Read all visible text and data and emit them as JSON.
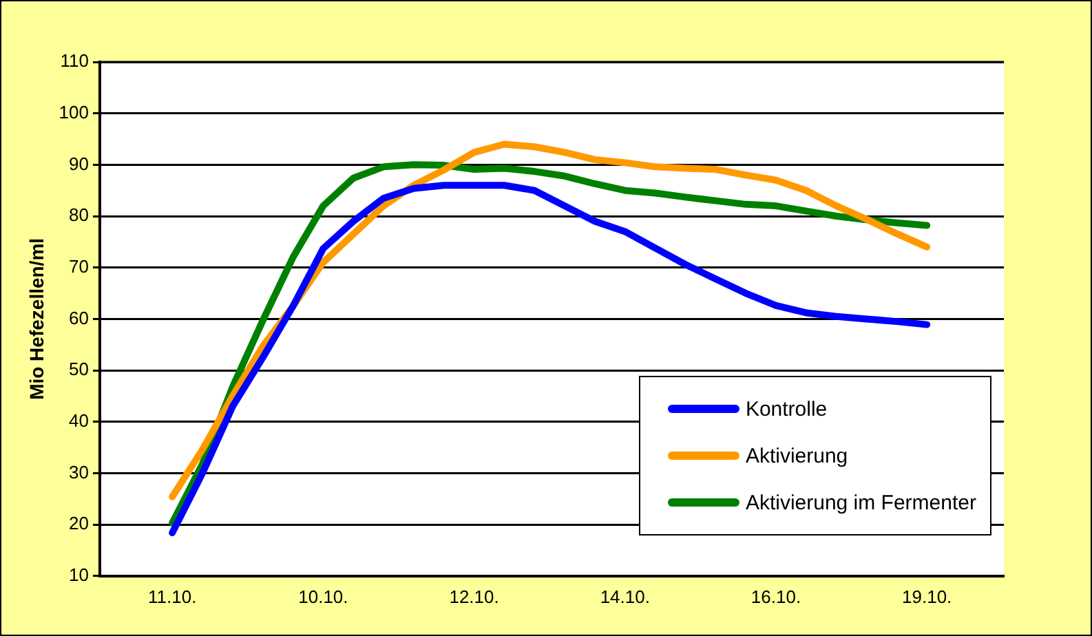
{
  "chart_data": {
    "type": "line",
    "ylabel": "Mio Hefezellen/ml",
    "categories": [
      "11.10.",
      null,
      null,
      null,
      null,
      "10.10.",
      null,
      null,
      null,
      null,
      "12.10.",
      null,
      null,
      null,
      null,
      "14.10.",
      null,
      null,
      null,
      null,
      "16.10.",
      null,
      null,
      null,
      null,
      "19.10."
    ],
    "series": [
      {
        "name": "Kontrolle",
        "color": "#0000ff",
        "values": [
          18.4,
          30,
          43,
          52.5,
          62.5,
          73.7,
          79,
          83.5,
          85.4,
          86,
          86,
          86,
          85,
          82,
          79,
          77,
          73.8,
          70.6,
          67.8,
          65,
          62.6,
          61.2,
          60.5,
          60,
          59.5,
          58.9
        ]
      },
      {
        "name": "Aktivierung",
        "color": "#ff9900",
        "values": [
          25.4,
          34.6,
          45,
          54.7,
          62.5,
          71,
          76.5,
          82,
          86,
          89,
          92.4,
          94,
          93.5,
          92.4,
          91,
          90.4,
          89.6,
          89.3,
          89.1,
          88,
          87,
          85,
          82,
          79.4,
          76.6,
          74
        ]
      },
      {
        "name": "Aktivierung im Fermenter",
        "color": "#008000",
        "values": [
          20.3,
          31.8,
          46.8,
          59.7,
          72,
          82,
          87.4,
          89.6,
          90,
          89.9,
          89.1,
          89.3,
          88.7,
          87.8,
          86.3,
          85,
          84.5,
          83.7,
          83,
          82.3,
          82,
          81,
          80,
          79.3,
          78.7,
          78.2
        ]
      }
    ],
    "ylim": [
      10,
      110
    ],
    "yticks": [
      10,
      20,
      30,
      40,
      50,
      60,
      70,
      80,
      90,
      100,
      110
    ],
    "grid": "y",
    "legend": "bottom right",
    "marker": "none",
    "line_style": "solid"
  }
}
